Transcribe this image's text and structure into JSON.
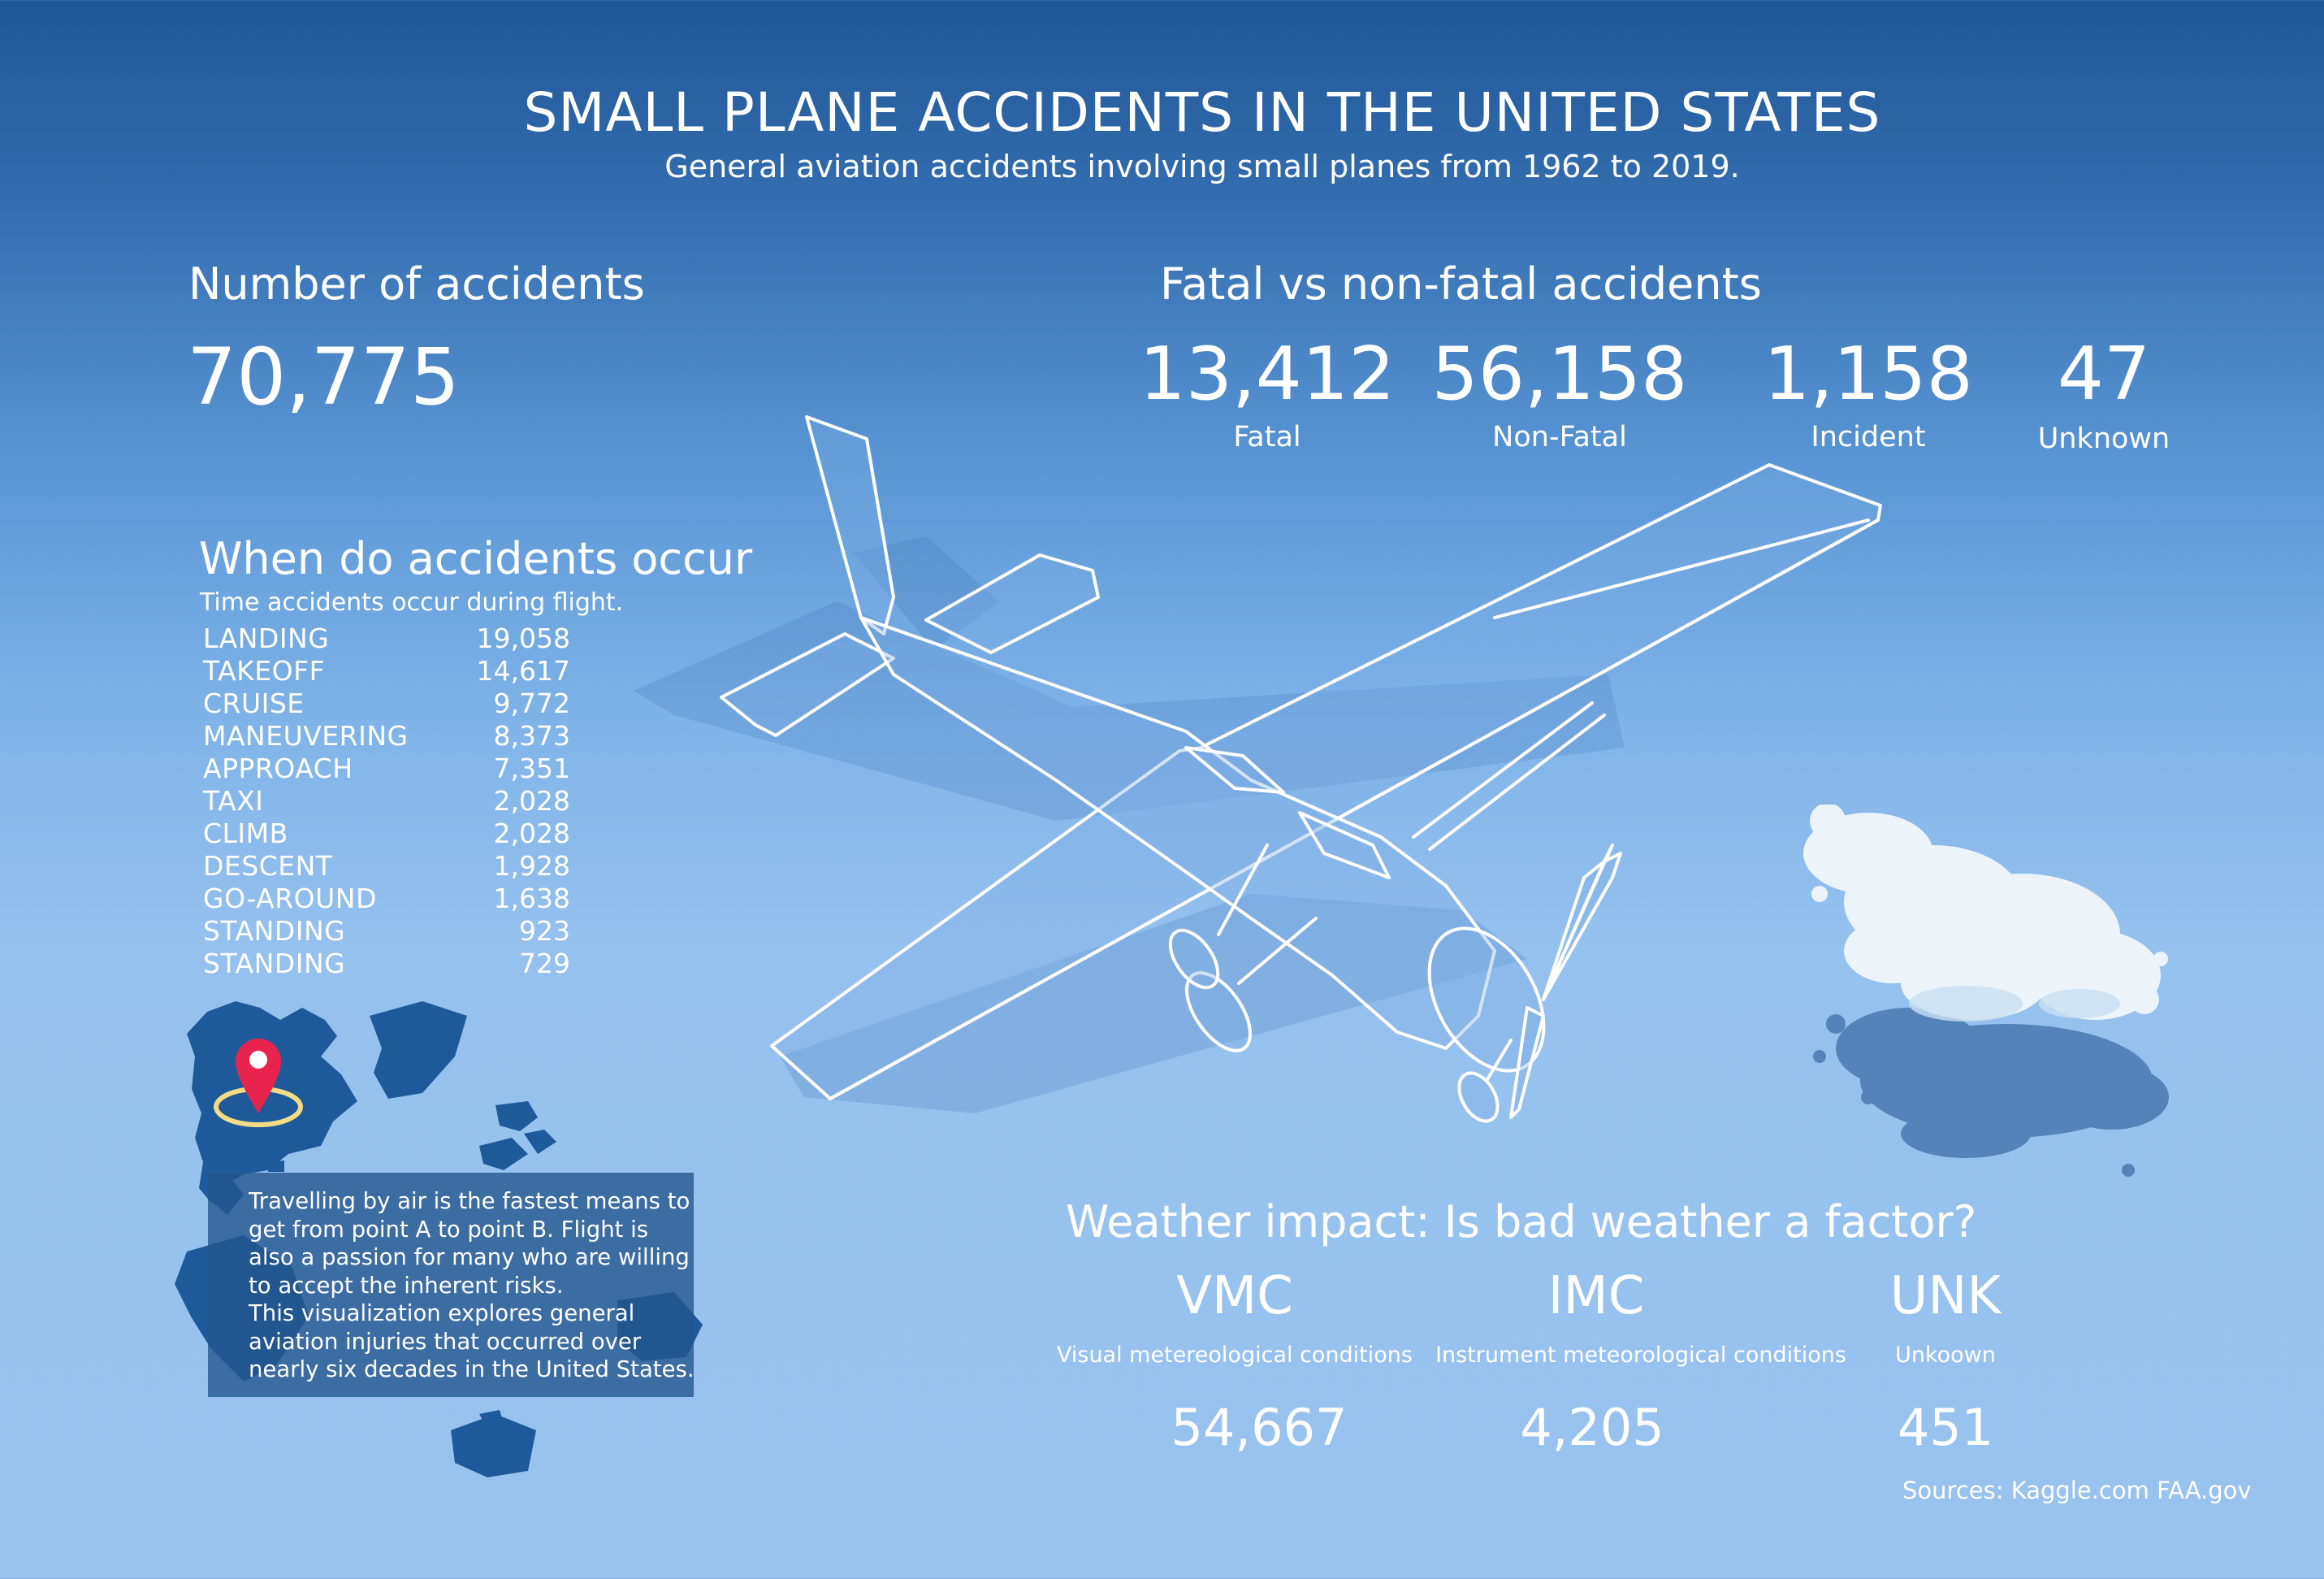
{
  "header": {
    "title": "SMALL PLANE ACCIDENTS IN THE UNITED STATES",
    "subtitle": "General aviation accidents involving small planes from 1962 to 2019."
  },
  "total": {
    "heading": "Number of accidents",
    "value": "70,775"
  },
  "severity": {
    "heading": "Fatal vs non-fatal accidents",
    "items": [
      {
        "value": "13,412",
        "label": "Fatal"
      },
      {
        "value": "56,158",
        "label": "Non-Fatal"
      },
      {
        "value": "1,158",
        "label": "Incident"
      },
      {
        "value": "47",
        "label": "Unknown"
      }
    ]
  },
  "phases": {
    "heading": "When do accidents occur",
    "subheading": "Time accidents occur during flight.",
    "rows": [
      {
        "name": "LANDING",
        "value": "19,058"
      },
      {
        "name": "TAKEOFF",
        "value": "14,617"
      },
      {
        "name": "CRUISE",
        "value": "9,772"
      },
      {
        "name": "MANEUVERING",
        "value": "8,373"
      },
      {
        "name": "APPROACH",
        "value": "7,351"
      },
      {
        "name": "TAXI",
        "value": "2,028"
      },
      {
        "name": "CLIMB",
        "value": "2,028"
      },
      {
        "name": "DESCENT",
        "value": "1,928"
      },
      {
        "name": "GO-AROUND",
        "value": "1,638"
      },
      {
        "name": "STANDING",
        "value": "923"
      },
      {
        "name": "STANDING",
        "value": "729"
      }
    ]
  },
  "intro": {
    "lines": [
      "Travelling by air is the fastest means to",
      "get from point A to point B. Flight is",
      "also a passion for many who are willing",
      "to accept the inherent risks.",
      "This visualization explores general",
      "aviation injuries that occurred over",
      "nearly six decades in the United States."
    ]
  },
  "weather": {
    "heading": "Weather impact: Is bad weather a factor?",
    "items": [
      {
        "code": "VMC",
        "desc": "Visual metereological conditions",
        "value": "54,667"
      },
      {
        "code": "IMC",
        "desc": "Instrument meteorological conditions",
        "value": "4,205"
      },
      {
        "code": "UNK",
        "desc": "Unkoown",
        "value": "451"
      }
    ]
  },
  "sources": "Sources: Kaggle.com FAA.gov",
  "colors": {
    "map_land": "#1e5a99",
    "pin": "#e8234e",
    "ring": "#f3dc84",
    "plane_outline": "#ffffff",
    "cloud": "#ecf4fa"
  },
  "icons": [
    "airplane-illustration",
    "map-pin-icon",
    "cloud-illustration",
    "world-map-illustration"
  ]
}
